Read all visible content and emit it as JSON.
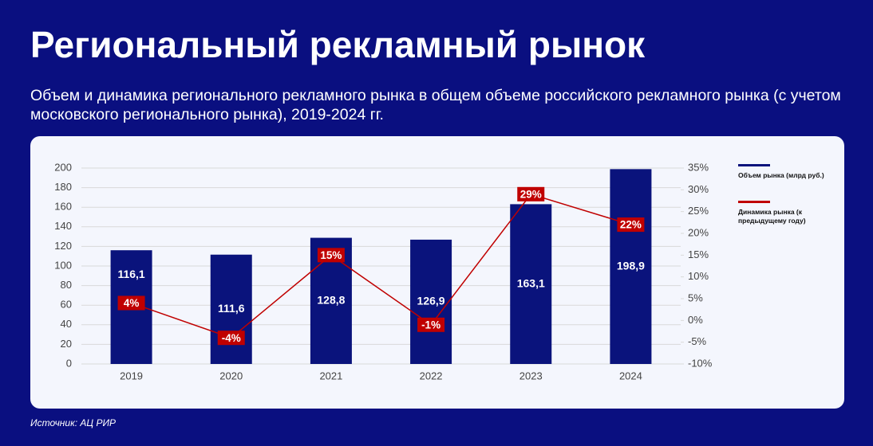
{
  "header": {
    "title": "Региональный рекламный рынок",
    "subtitle": "Объем и динамика регионального рекламного рынка в общем объеме российского рекламного рынка (с учетом московского регионального рынка), 2019-2024 гг."
  },
  "source": "Источник: АЦ РИР",
  "chart_data": {
    "type": "bar",
    "categories": [
      "2019",
      "2020",
      "2021",
      "2022",
      "2023",
      "2024"
    ],
    "series": [
      {
        "name": "Объем рынка (млрд руб.)",
        "color": "#0a137c",
        "type": "bar",
        "values": [
          116.1,
          111.6,
          128.8,
          126.9,
          163.1,
          198.9
        ],
        "value_labels": [
          "116,1",
          "111,6",
          "128,8",
          "126,9",
          "163,1",
          "198,9"
        ]
      },
      {
        "name": "Динамика рынка (к предыдущему году)",
        "color": "#c00000",
        "type": "line",
        "axis": "y2",
        "values": [
          4,
          -4,
          15,
          -1,
          29,
          22
        ],
        "value_labels": [
          "4%",
          "-4%",
          "15%",
          "-1%",
          "29%",
          "22%"
        ]
      }
    ],
    "ylim": [
      0,
      200
    ],
    "yticks": [
      0,
      20,
      40,
      60,
      80,
      100,
      120,
      140,
      160,
      180,
      200
    ],
    "y2lim": [
      -10,
      35
    ],
    "y2ticks": [
      {
        "value": -10,
        "label": "-10%"
      },
      {
        "value": -5,
        "label": "-5%"
      },
      {
        "value": 0,
        "label": "0%"
      },
      {
        "value": 5,
        "label": "5%"
      },
      {
        "value": 10,
        "label": "10%"
      },
      {
        "value": 15,
        "label": "15%"
      },
      {
        "value": 20,
        "label": "20%"
      },
      {
        "value": 25,
        "label": "25%"
      },
      {
        "value": 30,
        "label": "30%"
      },
      {
        "value": 35,
        "label": "35%"
      }
    ],
    "grid": true,
    "legend": "right"
  }
}
